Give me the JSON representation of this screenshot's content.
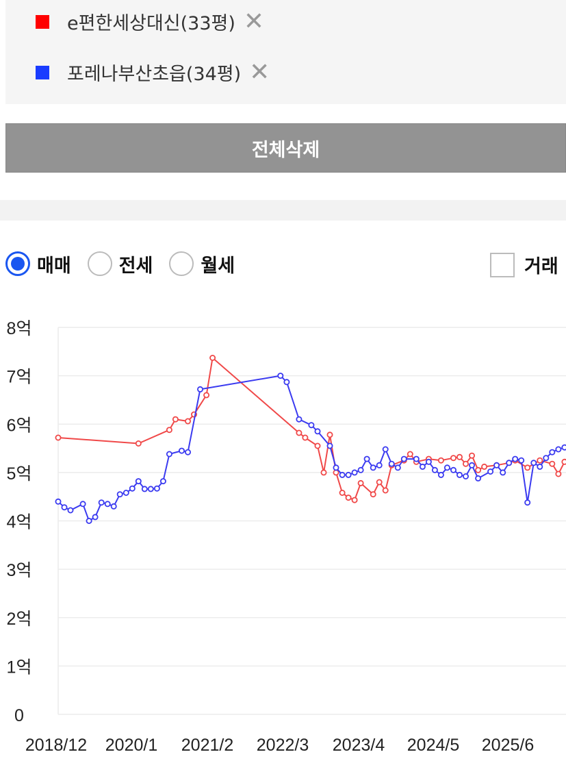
{
  "legend": {
    "items": [
      {
        "label": "e편한세상대신(33평)",
        "color": "#ff0000"
      },
      {
        "label": "포레나부산초읍(34평)",
        "color": "#1a3cff"
      }
    ],
    "remove_glyph": "✕"
  },
  "delete_all_label": "전체삭제",
  "radios": [
    {
      "label": "매매",
      "checked": true
    },
    {
      "label": "전세",
      "checked": false
    },
    {
      "label": "월세",
      "checked": false
    }
  ],
  "checkbox_label": "거래",
  "chart_data": {
    "type": "line",
    "x_tick_labels": [
      "2018/12",
      "2020/1",
      "2021/2",
      "2022/3",
      "2023/4",
      "2024/5",
      "2025/6"
    ],
    "y_tick_labels": [
      "0",
      "1억",
      "2억",
      "3억",
      "4억",
      "5억",
      "6억",
      "7억",
      "8억"
    ],
    "ylim": [
      0,
      8
    ],
    "y_unit": "억",
    "grid": true,
    "series": [
      {
        "name": "e편한세상대신(33평)",
        "color": "#f04848",
        "points": [
          [
            "2018-12",
            5.72
          ],
          [
            "2020-01",
            5.6
          ],
          [
            "2020-06",
            5.88
          ],
          [
            "2020-07",
            6.1
          ],
          [
            "2020-09",
            6.06
          ],
          [
            "2020-10",
            6.2
          ],
          [
            "2020-12",
            6.6
          ],
          [
            "2021-01",
            7.37
          ],
          [
            "2022-03",
            5.82
          ],
          [
            "2022-04",
            5.72
          ],
          [
            "2022-06",
            5.55
          ],
          [
            "2022-07",
            5.0
          ],
          [
            "2022-08",
            5.78
          ],
          [
            "2022-09",
            5.0
          ],
          [
            "2022-10",
            4.58
          ],
          [
            "2022-11",
            4.48
          ],
          [
            "2022-12",
            4.43
          ],
          [
            "2023-01",
            4.78
          ],
          [
            "2023-03",
            4.55
          ],
          [
            "2023-04",
            4.8
          ],
          [
            "2023-05",
            4.63
          ],
          [
            "2023-06",
            5.15
          ],
          [
            "2023-08",
            5.25
          ],
          [
            "2023-09",
            5.38
          ],
          [
            "2023-10",
            5.22
          ],
          [
            "2023-12",
            5.28
          ],
          [
            "2024-02",
            5.25
          ],
          [
            "2024-04",
            5.3
          ],
          [
            "2024-05",
            5.32
          ],
          [
            "2024-06",
            5.18
          ],
          [
            "2024-07",
            5.35
          ],
          [
            "2024-08",
            5.05
          ],
          [
            "2024-09",
            5.12
          ],
          [
            "2024-11",
            5.15
          ],
          [
            "2025-01",
            5.2
          ],
          [
            "2025-02",
            5.25
          ],
          [
            "2025-04",
            5.1
          ],
          [
            "2025-06",
            5.25
          ],
          [
            "2025-08",
            5.18
          ],
          [
            "2025-09",
            4.97
          ],
          [
            "2025-10",
            5.22
          ],
          [
            "2025-12",
            5.4
          ],
          [
            "2026-01",
            5.0
          ],
          [
            "2026-02",
            5.35
          ],
          [
            "2026-04",
            5.42
          ]
        ]
      },
      {
        "name": "포레나부산초읍(34평)",
        "color": "#3a3af0",
        "points": [
          [
            "2018-12",
            4.4
          ],
          [
            "2019-01",
            4.28
          ],
          [
            "2019-02",
            4.22
          ],
          [
            "2019-04",
            4.35
          ],
          [
            "2019-05",
            4.0
          ],
          [
            "2019-06",
            4.08
          ],
          [
            "2019-07",
            4.38
          ],
          [
            "2019-08",
            4.35
          ],
          [
            "2019-09",
            4.3
          ],
          [
            "2019-10",
            4.55
          ],
          [
            "2019-11",
            4.58
          ],
          [
            "2019-12",
            4.67
          ],
          [
            "2020-01",
            4.82
          ],
          [
            "2020-02",
            4.66
          ],
          [
            "2020-03",
            4.66
          ],
          [
            "2020-04",
            4.67
          ],
          [
            "2020-05",
            4.82
          ],
          [
            "2020-06",
            5.38
          ],
          [
            "2020-08",
            5.45
          ],
          [
            "2020-09",
            5.42
          ],
          [
            "2020-11",
            6.72
          ],
          [
            "2021-12",
            7.0
          ],
          [
            "2022-01",
            6.87
          ],
          [
            "2022-03",
            6.1
          ],
          [
            "2022-05",
            5.98
          ],
          [
            "2022-06",
            5.85
          ],
          [
            "2022-08",
            5.55
          ],
          [
            "2022-09",
            5.1
          ],
          [
            "2022-10",
            4.95
          ],
          [
            "2022-11",
            4.95
          ],
          [
            "2022-12",
            5.0
          ],
          [
            "2023-01",
            5.05
          ],
          [
            "2023-02",
            5.28
          ],
          [
            "2023-03",
            5.1
          ],
          [
            "2023-04",
            5.15
          ],
          [
            "2023-05",
            5.48
          ],
          [
            "2023-06",
            5.18
          ],
          [
            "2023-07",
            5.1
          ],
          [
            "2023-08",
            5.28
          ],
          [
            "2023-10",
            5.28
          ],
          [
            "2023-11",
            5.12
          ],
          [
            "2023-12",
            5.22
          ],
          [
            "2024-01",
            5.05
          ],
          [
            "2024-02",
            4.95
          ],
          [
            "2024-03",
            5.1
          ],
          [
            "2024-04",
            5.05
          ],
          [
            "2024-05",
            4.95
          ],
          [
            "2024-06",
            4.92
          ],
          [
            "2024-07",
            5.15
          ],
          [
            "2024-08",
            4.88
          ],
          [
            "2024-10",
            5.02
          ],
          [
            "2024-11",
            5.15
          ],
          [
            "2024-12",
            5.0
          ],
          [
            "2025-01",
            5.2
          ],
          [
            "2025-02",
            5.28
          ],
          [
            "2025-03",
            5.25
          ],
          [
            "2025-04",
            4.38
          ],
          [
            "2025-05",
            5.2
          ],
          [
            "2025-06",
            5.12
          ],
          [
            "2025-07",
            5.3
          ],
          [
            "2025-08",
            5.42
          ],
          [
            "2025-09",
            5.48
          ],
          [
            "2025-10",
            5.52
          ],
          [
            "2025-11",
            5.42
          ],
          [
            "2025-12",
            5.38
          ]
        ]
      }
    ]
  }
}
